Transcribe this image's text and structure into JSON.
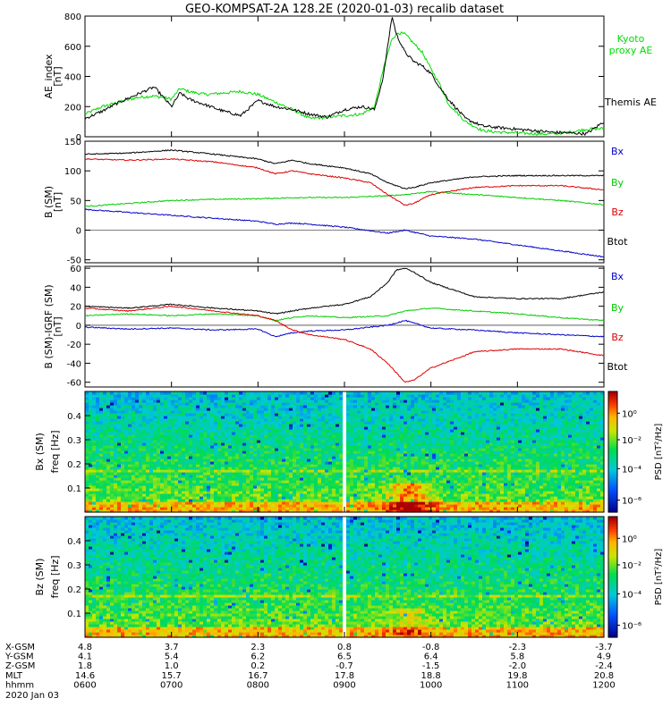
{
  "title": "GEO-KOMPSAT-2A 128.2E (2020-01-03) recalib dataset",
  "chart_data": [
    {
      "id": "ae",
      "type": "line",
      "ylabel": [
        "AE_index",
        "[nT]"
      ],
      "ylim": [
        0,
        800
      ],
      "yticks": [
        0,
        200,
        400,
        600,
        800
      ],
      "xlim": [
        6.0,
        12.0
      ],
      "series": [
        {
          "name": "Kyoto proxy AE",
          "label_lines": [
            "Kyoto",
            "proxy AE"
          ],
          "color": "#00dd00",
          "x": [
            6.0,
            6.2,
            6.4,
            6.6,
            6.8,
            7.0,
            7.1,
            7.2,
            7.4,
            7.6,
            7.8,
            8.0,
            8.2,
            8.4,
            8.6,
            8.8,
            9.0,
            9.2,
            9.35,
            9.45,
            9.55,
            9.62,
            9.7,
            9.8,
            9.9,
            10.0,
            10.1,
            10.2,
            10.4,
            10.6,
            10.8,
            11.0,
            11.2,
            11.4,
            11.6,
            11.8,
            12.0
          ],
          "y": [
            150,
            200,
            230,
            260,
            270,
            250,
            320,
            300,
            280,
            290,
            300,
            280,
            230,
            180,
            120,
            130,
            140,
            150,
            200,
            450,
            650,
            690,
            680,
            620,
            560,
            450,
            350,
            220,
            100,
            40,
            30,
            25,
            20,
            18,
            30,
            50,
            55
          ]
        },
        {
          "name": "Themis AE",
          "label_lines": [
            "Themis AE"
          ],
          "color": "#000000",
          "x": [
            6.0,
            6.2,
            6.4,
            6.6,
            6.8,
            7.0,
            7.1,
            7.2,
            7.4,
            7.6,
            7.8,
            8.0,
            8.2,
            8.4,
            8.6,
            8.8,
            9.0,
            9.2,
            9.35,
            9.45,
            9.55,
            9.6,
            9.7,
            9.8,
            9.9,
            10.0,
            10.1,
            10.2,
            10.4,
            10.6,
            10.8,
            11.0,
            11.2,
            11.4,
            11.6,
            11.8,
            12.0
          ],
          "y": [
            120,
            170,
            230,
            280,
            330,
            200,
            290,
            250,
            210,
            170,
            140,
            240,
            200,
            180,
            150,
            130,
            180,
            200,
            180,
            400,
            800,
            680,
            560,
            500,
            470,
            420,
            330,
            250,
            120,
            70,
            60,
            50,
            40,
            30,
            25,
            20,
            100
          ]
        }
      ],
      "side_labels": [
        "Kyoto proxy AE",
        "Themis AE"
      ]
    },
    {
      "id": "bsm",
      "type": "line",
      "ylabel": [
        "B (SM)",
        "[nT]"
      ],
      "ylim": [
        -55,
        150
      ],
      "yticks": [
        -50,
        0,
        50,
        100,
        150
      ],
      "xlim": [
        6.0,
        12.0
      ],
      "series": [
        {
          "name": "Bx",
          "color": "#0000cc",
          "x": [
            6.0,
            6.5,
            7.0,
            7.5,
            8.0,
            8.2,
            8.4,
            8.6,
            9.0,
            9.5,
            9.7,
            10.0,
            10.5,
            11.0,
            11.5,
            12.0
          ],
          "y": [
            35,
            30,
            25,
            20,
            15,
            10,
            12,
            10,
            5,
            -5,
            0,
            -10,
            -15,
            -25,
            -35,
            -45
          ]
        },
        {
          "name": "By",
          "color": "#00cc00",
          "x": [
            6.0,
            6.5,
            7.0,
            7.5,
            8.0,
            8.5,
            9.0,
            9.5,
            9.7,
            10.0,
            10.5,
            11.0,
            11.5,
            12.0
          ],
          "y": [
            40,
            45,
            50,
            52,
            53,
            55,
            55,
            58,
            60,
            65,
            60,
            55,
            50,
            43
          ]
        },
        {
          "name": "Bz",
          "color": "#dd0000",
          "x": [
            6.0,
            6.5,
            7.0,
            7.5,
            8.0,
            8.2,
            8.4,
            8.6,
            9.0,
            9.3,
            9.5,
            9.7,
            9.8,
            10.0,
            10.5,
            11.0,
            11.5,
            12.0
          ],
          "y": [
            120,
            118,
            120,
            115,
            105,
            95,
            100,
            95,
            88,
            80,
            60,
            42,
            45,
            60,
            72,
            75,
            75,
            68
          ]
        },
        {
          "name": "Btot",
          "color": "#000000",
          "x": [
            6.0,
            6.5,
            7.0,
            7.5,
            8.0,
            8.2,
            8.4,
            8.6,
            9.0,
            9.3,
            9.5,
            9.7,
            9.8,
            10.0,
            10.5,
            11.0,
            11.5,
            12.0
          ],
          "y": [
            128,
            130,
            135,
            128,
            120,
            112,
            118,
            112,
            105,
            95,
            80,
            70,
            72,
            80,
            90,
            92,
            92,
            92
          ]
        }
      ],
      "side_labels": [
        "Bx",
        "By",
        "Bz",
        "Btot"
      ]
    },
    {
      "id": "bsm_igrf",
      "type": "line",
      "ylabel": [
        "B (SM)-IGRF (SM)",
        "[nT]"
      ],
      "ylim": [
        -65,
        62
      ],
      "yticks": [
        -60,
        -40,
        -20,
        0,
        20,
        40,
        60
      ],
      "xlim": [
        6.0,
        12.0
      ],
      "series": [
        {
          "name": "Bx",
          "color": "#0000cc",
          "x": [
            6.0,
            6.5,
            7.0,
            7.5,
            8.0,
            8.2,
            8.4,
            8.6,
            9.0,
            9.5,
            9.7,
            10.0,
            10.5,
            11.0,
            11.5,
            12.0
          ],
          "y": [
            -2,
            -4,
            -3,
            -5,
            -4,
            -12,
            -8,
            -6,
            -5,
            0,
            5,
            -3,
            -5,
            -8,
            -10,
            -12
          ]
        },
        {
          "name": "By",
          "color": "#00cc00",
          "x": [
            6.0,
            6.5,
            7.0,
            7.5,
            8.0,
            8.2,
            8.4,
            8.6,
            9.0,
            9.5,
            9.7,
            10.0,
            10.5,
            11.0,
            11.5,
            12.0
          ],
          "y": [
            10,
            12,
            10,
            12,
            10,
            5,
            8,
            10,
            8,
            10,
            15,
            18,
            15,
            12,
            8,
            5
          ]
        },
        {
          "name": "Bz",
          "color": "#dd0000",
          "x": [
            6.0,
            6.5,
            7.0,
            7.5,
            8.0,
            8.2,
            8.4,
            8.6,
            9.0,
            9.3,
            9.5,
            9.7,
            9.8,
            10.0,
            10.3,
            10.5,
            11.0,
            11.5,
            12.0
          ],
          "y": [
            18,
            15,
            20,
            15,
            10,
            5,
            -5,
            -10,
            -15,
            -25,
            -40,
            -60,
            -58,
            -45,
            -35,
            -28,
            -25,
            -25,
            -32
          ]
        },
        {
          "name": "Btot",
          "color": "#000000",
          "x": [
            6.0,
            6.5,
            7.0,
            7.5,
            8.0,
            8.2,
            8.4,
            8.6,
            9.0,
            9.3,
            9.5,
            9.6,
            9.7,
            9.8,
            10.0,
            10.5,
            11.0,
            11.5,
            12.0
          ],
          "y": [
            20,
            18,
            22,
            18,
            15,
            12,
            15,
            18,
            22,
            30,
            45,
            58,
            60,
            56,
            45,
            30,
            28,
            28,
            35
          ]
        }
      ],
      "side_labels": [
        "Bx",
        "By",
        "Bz",
        "Btot"
      ]
    },
    {
      "id": "spec_bx",
      "type": "heatmap",
      "ylabel": [
        "Bx (SM)",
        "freq [Hz]"
      ],
      "ylim": [
        0,
        0.5
      ],
      "yticks": [
        0.1,
        0.2,
        0.3,
        0.4
      ],
      "xlim": [
        6.0,
        12.0
      ],
      "data_gap": [
        8.98,
        9.02
      ],
      "colorbar": {
        "label": "PSD [nT²/Hz]",
        "ticks": [
          "10⁰",
          "10⁻²",
          "10⁻⁴",
          "10⁻⁶"
        ]
      }
    },
    {
      "id": "spec_bz",
      "type": "heatmap",
      "ylabel": [
        "Bz (SM)",
        "freq [Hz]"
      ],
      "ylim": [
        0,
        0.5
      ],
      "yticks": [
        0.1,
        0.2,
        0.3,
        0.4
      ],
      "xlim": [
        6.0,
        12.0
      ],
      "data_gap": [
        8.98,
        9.02
      ],
      "colorbar": {
        "label": "PSD [nT²/Hz]",
        "ticks": [
          "10⁰",
          "10⁻²",
          "10⁻⁴",
          "10⁻⁶"
        ]
      }
    }
  ],
  "ephemeris": {
    "rows": [
      {
        "label": "X-GSM",
        "values": [
          "4.8",
          "3.7",
          "2.3",
          "0.8",
          "-0.8",
          "-2.3",
          "-3.7"
        ]
      },
      {
        "label": "Y-GSM",
        "values": [
          "4.1",
          "5.4",
          "6.2",
          "6.5",
          "6.4",
          "5.8",
          "4.9"
        ]
      },
      {
        "label": "Z-GSM",
        "values": [
          "1.8",
          "1.0",
          "0.2",
          "-0.7",
          "-1.5",
          "-2.0",
          "-2.4"
        ]
      },
      {
        "label": "MLT",
        "values": [
          "14.6",
          "15.7",
          "16.7",
          "17.8",
          "18.8",
          "19.8",
          "20.8"
        ]
      },
      {
        "label": "hhmm",
        "values": [
          "0600",
          "0700",
          "0800",
          "0900",
          "1000",
          "1100",
          "1200"
        ]
      }
    ],
    "date": "2020 Jan 03"
  }
}
